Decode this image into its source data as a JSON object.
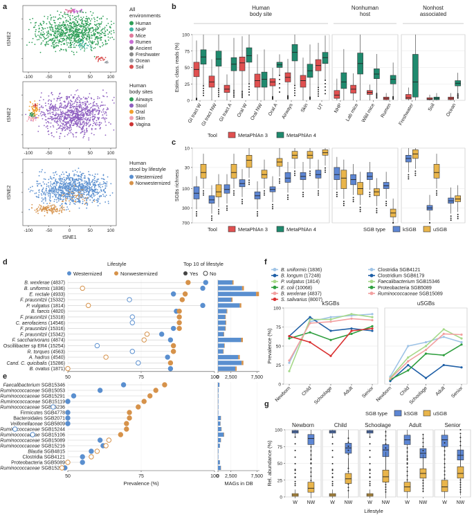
{
  "panel_labels": {
    "a": "a",
    "b": "b",
    "c": "c",
    "d": "d",
    "e": "e",
    "f": "f",
    "g": "g"
  },
  "colors": {
    "human": "#2e9e57",
    "nhp": "#3fb4a4",
    "mice": "#e07a9c",
    "rumen": "#c86dd3",
    "ancient": "#6f6f6f",
    "freshwater": "#8a8a8a",
    "ocean": "#9aa0a6",
    "soil": "#d94f4f",
    "airways": "#2e9e57",
    "stool": "#8e5fc0",
    "oral": "#f2a030",
    "skin": "#f0a0b0",
    "vagina": "#cc3333",
    "westernized": "#5a8fcf",
    "nonwesternized": "#d6924a",
    "mpa3": "#e05050",
    "mpa4": "#1f8a6e",
    "ksgb": "#5d86d3",
    "usgb": "#e9b54b"
  },
  "chart_data": [
    {
      "id": "a1",
      "type": "scatter",
      "title": "All environments",
      "xlabel": "",
      "ylabel": "tSNE2",
      "xticks": [
        "-100",
        "-50",
        "0",
        "50",
        "100"
      ],
      "legend": [
        "Human",
        "NHP",
        "Mice",
        "Rumen",
        "Ancient",
        "Freshwater",
        "Ocean",
        "Soil"
      ]
    },
    {
      "id": "a2",
      "type": "scatter",
      "title": "Human body sites",
      "xlabel": "",
      "ylabel": "tSNE2",
      "xticks": [
        "-100",
        "-50",
        "0",
        "50",
        "100"
      ],
      "legend": [
        "Airways",
        "Stool",
        "Oral",
        "Skin",
        "Vagina"
      ]
    },
    {
      "id": "a3",
      "type": "scatter",
      "title": "Human stool by lifestyle",
      "xlabel": "tSNE1",
      "ylabel": "tSNE2",
      "xticks": [
        "-100",
        "-50",
        "0",
        "50",
        "100"
      ],
      "legend": [
        "Westernized",
        "Nonwesternized"
      ]
    },
    {
      "id": "b",
      "type": "box",
      "ylabel": "Estim. class. reads (%)",
      "ylim": [
        0,
        100
      ],
      "yticks": [
        "0",
        "25",
        "50",
        "75",
        "100"
      ],
      "groups": [
        {
          "label": "Human body site",
          "n": 9
        },
        {
          "label": "Nonhuman host",
          "n": 4
        },
        {
          "label": "Nonhost associated",
          "n": 3
        }
      ],
      "categories": [
        "GI tract W",
        "GI tract NW",
        "GI tract A",
        "Oral W",
        "Oral NW",
        "Oral A",
        "Airways",
        "Skin",
        "UT",
        "NHP",
        "Lab mice",
        "Wild mice",
        "Rumen",
        "Freshwater",
        "Soil",
        "Ocean"
      ],
      "series": [
        {
          "name": "MetaPhlAn 3",
          "medians": [
            47,
            28,
            17,
            57,
            30,
            28,
            35,
            30,
            53,
            8,
            17,
            12,
            3,
            4,
            2,
            3
          ],
          "q1": [
            36,
            20,
            12,
            45,
            20,
            22,
            28,
            20,
            45,
            3,
            11,
            9,
            1,
            2,
            1,
            1
          ],
          "q3": [
            58,
            37,
            23,
            66,
            40,
            33,
            42,
            38,
            62,
            15,
            23,
            15,
            5,
            9,
            4,
            5
          ]
        },
        {
          "name": "MetaPhlAn 4",
          "medians": [
            66,
            63,
            55,
            68,
            32,
            54,
            73,
            45,
            65,
            28,
            56,
            40,
            32,
            28,
            3,
            26
          ],
          "q1": [
            55,
            52,
            45,
            58,
            20,
            50,
            60,
            35,
            56,
            18,
            40,
            33,
            25,
            5,
            1,
            22
          ],
          "q3": [
            77,
            75,
            65,
            80,
            43,
            58,
            85,
            55,
            73,
            42,
            72,
            48,
            38,
            70,
            5,
            30
          ]
        }
      ],
      "legend_title": "Tool"
    },
    {
      "id": "c",
      "type": "box",
      "ylabel": "SGBs richness",
      "ylim": [
        10,
        700
      ],
      "scale": "log",
      "yticks": [
        "10",
        "30",
        "100",
        "300",
        "700"
      ],
      "categories": [
        "GI tract W",
        "GI tract NW",
        "GI tract A",
        "Oral W",
        "Oral NW",
        "Oral A",
        "Airways",
        "Skin",
        "UT",
        "NHP",
        "Lab mice",
        "Wild mice",
        "Rumen",
        "Freshwater",
        "Soil",
        "Ocean"
      ],
      "series": [
        {
          "name": "kSGB",
          "medians": [
            130,
            190,
            105,
            75,
            150,
            105,
            55,
            50,
            45,
            45,
            60,
            50,
            85,
            18,
            300,
            200
          ],
          "q1": [
            90,
            150,
            80,
            60,
            120,
            90,
            40,
            40,
            35,
            30,
            45,
            40,
            70,
            15,
            260,
            170
          ],
          "q3": [
            180,
            230,
            130,
            90,
            180,
            120,
            70,
            60,
            55,
            60,
            80,
            60,
            100,
            22,
            340,
            230
          ]
        },
        {
          "name": "uSGB",
          "medians": [
            40,
            120,
            40,
            20,
            45,
            22,
            15,
            15,
            13,
            55,
            100,
            120,
            400,
            14,
            40,
            180
          ],
          "q1": [
            25,
            80,
            25,
            15,
            35,
            18,
            12,
            12,
            11,
            35,
            70,
            100,
            320,
            11,
            25,
            150
          ],
          "q3": [
            55,
            160,
            55,
            30,
            55,
            28,
            18,
            18,
            15,
            100,
            140,
            150,
            500,
            18,
            55,
            210
          ]
        }
      ],
      "legend_title": "SGB type"
    },
    {
      "id": "d",
      "type": "dot",
      "xlabel": "",
      "xticks": [
        "50",
        "75",
        "100"
      ],
      "xlim": [
        50,
        100
      ],
      "legend_title": "Lifestyle",
      "legend": [
        "Westernized",
        "Nonwesternized"
      ],
      "top10_title": "Top 10 of lifestyle",
      "top10": [
        "Yes",
        "No"
      ],
      "rows": [
        {
          "label": "B. wexlerae (4837)",
          "w": 97,
          "nw": 91,
          "w_top": true,
          "nw_top": true,
          "mags": 3000
        },
        {
          "label": "B. uniformis (1836)",
          "w": 96,
          "nw": 55,
          "w_top": true,
          "nw_top": false,
          "mags": 5000
        },
        {
          "label": "E. rectale (4933)",
          "w": 86,
          "nw": 90,
          "w_top": true,
          "nw_top": true,
          "mags": 7900
        },
        {
          "label": "F. prausnitzii (15332)",
          "w": 71,
          "nw": 89,
          "w_top": false,
          "nw_top": true,
          "mags": 2800
        },
        {
          "label": "P. vulgatus (1814)",
          "w": 96,
          "nw": 57,
          "w_top": true,
          "nw_top": false,
          "mags": 4500
        },
        {
          "label": "B. faecis (4820)",
          "w": 87,
          "nw": 88,
          "w_top": true,
          "nw_top": true,
          "mags": 1800
        },
        {
          "label": "F. prausnitzii (15318)",
          "w": 72,
          "nw": 88,
          "w_top": false,
          "nw_top": true,
          "mags": 1500
        },
        {
          "label": "C. aerofaciens (14546)",
          "w": 72,
          "nw": 88,
          "w_top": false,
          "nw_top": true,
          "mags": 1600
        },
        {
          "label": "F. prausnitzii (15316)",
          "w": 86,
          "nw": 88,
          "w_top": true,
          "nw_top": true,
          "mags": 1500
        },
        {
          "label": "F. prausnitzii (15342)",
          "w": 82,
          "nw": 77,
          "w_top": true,
          "nw_top": false,
          "mags": 1200
        },
        {
          "label": "F. saccharivorans (4874)",
          "w": 85,
          "nw": 76,
          "w_top": true,
          "nw_top": false,
          "mags": 4800
        },
        {
          "label": "Oscillibacter sp ER4 (15254)",
          "w": 60,
          "nw": 86,
          "w_top": false,
          "nw_top": true,
          "mags": 1300
        },
        {
          "label": "R. torques (4563)",
          "w": 72,
          "nw": 86,
          "w_top": false,
          "nw_top": true,
          "mags": 1100
        },
        {
          "label": "A. hadrus (4540)",
          "w": 84,
          "nw": 63,
          "w_top": true,
          "nw_top": false,
          "mags": 4200
        },
        {
          "label": "Cand. C. quicibalis (15286)",
          "w": 74,
          "nw": 85,
          "w_top": false,
          "nw_top": true,
          "mags": 4900
        },
        {
          "label": "B. ovatus (1871)",
          "w": 85,
          "nw": 50,
          "w_top": true,
          "nw_top": false,
          "mags": 3600
        }
      ]
    },
    {
      "id": "e",
      "type": "dot",
      "xlabel": "Prevalence (%)",
      "xticks": [
        "50",
        "75",
        "100"
      ],
      "xlim": [
        50,
        100
      ],
      "mags_label": "MAGs in DB",
      "mags_ticks": [
        "0",
        "2,500",
        "7,500"
      ],
      "rows": [
        {
          "label": "Faecalibacterium SGB15346",
          "w": 69,
          "nw": 83,
          "w_top": true,
          "nw_top": true,
          "mags": 300
        },
        {
          "label": "Ruminococcaceae SGB15053",
          "w": 61,
          "nw": 80,
          "w_top": true,
          "nw_top": true,
          "mags": 120
        },
        {
          "label": "Ruminococcaceae SGB15291",
          "w": 52,
          "nw": 78,
          "w_top": true,
          "nw_top": true,
          "mags": 100
        },
        {
          "label": "Ruminococcaceae SGB15119",
          "w": 50,
          "nw": 76,
          "w_top": true,
          "nw_top": true,
          "mags": 90
        },
        {
          "label": "Ruminococcaceae SGB15236",
          "w": 45,
          "nw": 74,
          "w_top": false,
          "nw_top": true,
          "mags": 90
        },
        {
          "label": "Firmicutes SGB4778",
          "w": 50,
          "nw": 71,
          "w_top": true,
          "nw_top": true,
          "mags": 80
        },
        {
          "label": "Bacteroidales SGB2071",
          "w": 50,
          "nw": 71,
          "w_top": true,
          "nw_top": true,
          "mags": 600
        },
        {
          "label": "Veillonellaceae SGB5809",
          "w": 50,
          "nw": 70,
          "w_top": true,
          "nw_top": true,
          "mags": 500
        },
        {
          "label": "Ruminococcaceae SGB15244",
          "w": 32,
          "nw": 70,
          "w_top": false,
          "nw_top": true,
          "mags": 700
        },
        {
          "label": "Ruminococcaceae SGB15106",
          "w": 38,
          "nw": 68,
          "w_top": false,
          "nw_top": true,
          "mags": 1200
        },
        {
          "label": "Ruminococcaceae SGB15089",
          "w": 61,
          "nw": 64,
          "w_top": true,
          "nw_top": false,
          "mags": 600
        },
        {
          "label": "Ruminococcaceae SGB15216",
          "w": 62,
          "nw": 63,
          "w_top": true,
          "nw_top": false,
          "mags": 400
        },
        {
          "label": "Blautia SGB4815",
          "w": 58,
          "nw": 60,
          "w_top": true,
          "nw_top": false,
          "mags": 100
        },
        {
          "label": "Clostridia SGB4121",
          "w": 55,
          "nw": 58,
          "w_top": true,
          "nw_top": false,
          "mags": 80
        },
        {
          "label": "Proteobacteria SGB5089",
          "w": 55,
          "nw": 50,
          "w_top": true,
          "nw_top": false,
          "mags": 400
        },
        {
          "label": "Ruminococcaceae SGB15265",
          "w": 49,
          "nw": 48,
          "w_top": true,
          "nw_top": false,
          "mags": 600
        }
      ]
    },
    {
      "id": "f",
      "type": "line",
      "ylabel": "Prevalence (%)",
      "ylim": [
        0,
        100
      ],
      "yticks": [
        "0",
        "25",
        "50",
        "75",
        "100"
      ],
      "facets": [
        "kSGBs",
        "uSGBs"
      ],
      "categories": [
        "Newborn",
        "Child",
        "Schoolage",
        "Adult",
        "Senior"
      ],
      "series": [
        {
          "name": "B. uniformis (1836)",
          "italic_part": "B. uniformis",
          "suffix": " (1836)",
          "color": "#9ec3e6",
          "ksgb": true,
          "values": [
            28,
            82,
            88,
            90,
            92
          ]
        },
        {
          "name": "B. longum (17248)",
          "italic_part": "B. longum",
          "suffix": " (17248)",
          "color": "#1f5fa6",
          "ksgb": true,
          "values": [
            63,
            88,
            70,
            73,
            70
          ]
        },
        {
          "name": "P. vulgatus (1814)",
          "italic_part": "P. vulgatus",
          "suffix": " (1814)",
          "color": "#a6d98a",
          "ksgb": true,
          "values": [
            17,
            85,
            85,
            92,
            88
          ]
        },
        {
          "name": "E. coli (10068)",
          "italic_part": "E. coli",
          "suffix": " (10068)",
          "color": "#2e9e3e",
          "ksgb": true,
          "values": [
            60,
            68,
            58,
            66,
            76
          ]
        },
        {
          "name": "B. wexlerae (4837)",
          "italic_part": "B. wexlerae",
          "suffix": " (4837)",
          "color": "#f2a0a0",
          "ksgb": true,
          "values": [
            31,
            80,
            82,
            86,
            84
          ]
        },
        {
          "name": "S. salivarius (8007)",
          "italic_part": "S. salivarius",
          "suffix": " (8007)",
          "color": "#d93030",
          "ksgb": true,
          "values": [
            63,
            55,
            37,
            70,
            73
          ]
        },
        {
          "name": "Clostridia SGB4121",
          "italic_part": "",
          "suffix": "Clostridia SGB4121",
          "color": "#9ec3e6",
          "ksgb": false,
          "values": [
            10,
            50,
            55,
            62,
            55
          ]
        },
        {
          "name": "Clostridium SGB6179",
          "italic_part": "",
          "suffix": "Clostridium SGB6179",
          "color": "#1f5fa6",
          "ksgb": false,
          "values": [
            4,
            25,
            8,
            25,
            22
          ]
        },
        {
          "name": "Faecalibacterium SGB15346",
          "italic_part": "Faecalibacterium",
          "suffix": " SGB15346",
          "color": "#a6d98a",
          "ksgb": false,
          "values": [
            8,
            35,
            50,
            72,
            60
          ]
        },
        {
          "name": "Proteobacteria SGB5089",
          "italic_part": "",
          "suffix": "Proteobacteria SGB5089",
          "color": "#2e9e3e",
          "ksgb": false,
          "values": [
            6,
            18,
            40,
            38,
            52
          ]
        },
        {
          "name": "Ruminococcaceae SGB15089",
          "italic_part": "Ruminococcaceae",
          "suffix": " SGB15089",
          "color": "#f2a0a0",
          "ksgb": false,
          "values": [
            7,
            30,
            45,
            66,
            65
          ]
        }
      ]
    },
    {
      "id": "g",
      "type": "box",
      "ylabel": "Rel. abundance (%)",
      "xlabel": "Lifestyle",
      "ylim": [
        0,
        100
      ],
      "yticks": [
        "0",
        "25",
        "50",
        "75",
        "100"
      ],
      "legend_title": "SGB type",
      "legend": [
        "kSGB",
        "uSGB"
      ],
      "facets": [
        "Newborn",
        "Child",
        "Schoolage",
        "Adult",
        "Senior"
      ],
      "categories": [
        "W",
        "NW"
      ],
      "series": [
        {
          "name": "kSGB",
          "medians": [
            [
              97,
              87
            ],
            [
              97,
              73
            ],
            [
              97,
              70
            ],
            [
              85,
              65
            ],
            [
              85,
              62
            ]
          ],
          "q1": [
            [
              95,
              78
            ],
            [
              95,
              65
            ],
            [
              95,
              60
            ],
            [
              78,
              58
            ],
            [
              75,
              55
            ]
          ],
          "q3": [
            [
              99,
              93
            ],
            [
              99,
              80
            ],
            [
              99,
              78
            ],
            [
              92,
              72
            ],
            [
              92,
              70
            ]
          ]
        },
        {
          "name": "uSGB",
          "medians": [
            [
              3,
              13
            ],
            [
              3,
              27
            ],
            [
              3,
              30
            ],
            [
              15,
              35
            ],
            [
              15,
              35
            ]
          ],
          "q1": [
            [
              1,
              7
            ],
            [
              1,
              20
            ],
            [
              1,
              22
            ],
            [
              8,
              28
            ],
            [
              8,
              28
            ]
          ],
          "q3": [
            [
              5,
              22
            ],
            [
              5,
              35
            ],
            [
              5,
              40
            ],
            [
              22,
              42
            ],
            [
              25,
              45
            ]
          ]
        }
      ]
    }
  ]
}
